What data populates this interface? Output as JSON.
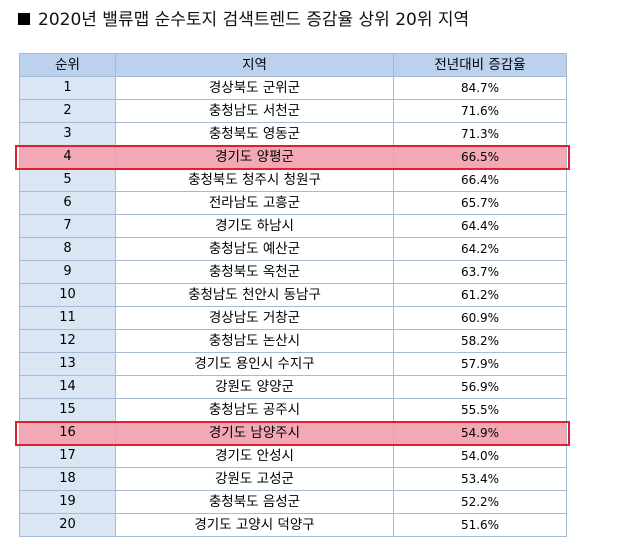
{
  "title": "2020년 밸류맵 순수토지 검색트렌드 증감율 상위 20위 지역",
  "colors": {
    "header_bg": "#bcd1ee",
    "rank_col_bg": "#dbe6f5",
    "highlight_fill": "#f2a9b5",
    "highlight_border": "#e0202f"
  },
  "table": {
    "headers": [
      "순위",
      "지역",
      "전년대비 증감율"
    ],
    "rows": [
      {
        "rank": "1",
        "region": "경상북도 군위군",
        "rate": "84.7%",
        "highlight": false
      },
      {
        "rank": "2",
        "region": "충청남도 서천군",
        "rate": "71.6%",
        "highlight": false
      },
      {
        "rank": "3",
        "region": "충청북도 영동군",
        "rate": "71.3%",
        "highlight": false
      },
      {
        "rank": "4",
        "region": "경기도 양평군",
        "rate": "66.5%",
        "highlight": true
      },
      {
        "rank": "5",
        "region": "충청북도 청주시 청원구",
        "rate": "66.4%",
        "highlight": false
      },
      {
        "rank": "6",
        "region": "전라남도 고흥군",
        "rate": "65.7%",
        "highlight": false
      },
      {
        "rank": "7",
        "region": "경기도 하남시",
        "rate": "64.4%",
        "highlight": false
      },
      {
        "rank": "8",
        "region": "충청남도 예산군",
        "rate": "64.2%",
        "highlight": false
      },
      {
        "rank": "9",
        "region": "충청북도 옥천군",
        "rate": "63.7%",
        "highlight": false
      },
      {
        "rank": "10",
        "region": "충청남도 천안시 동남구",
        "rate": "61.2%",
        "highlight": false
      },
      {
        "rank": "11",
        "region": "경상남도 거창군",
        "rate": "60.9%",
        "highlight": false
      },
      {
        "rank": "12",
        "region": "충청남도 논산시",
        "rate": "58.2%",
        "highlight": false
      },
      {
        "rank": "13",
        "region": "경기도 용인시 수지구",
        "rate": "57.9%",
        "highlight": false
      },
      {
        "rank": "14",
        "region": "강원도 양양군",
        "rate": "56.9%",
        "highlight": false
      },
      {
        "rank": "15",
        "region": "충청남도 공주시",
        "rate": "55.5%",
        "highlight": false
      },
      {
        "rank": "16",
        "region": "경기도 남양주시",
        "rate": "54.9%",
        "highlight": true
      },
      {
        "rank": "17",
        "region": "경기도 안성시",
        "rate": "54.0%",
        "highlight": false
      },
      {
        "rank": "18",
        "region": "강원도 고성군",
        "rate": "53.4%",
        "highlight": false
      },
      {
        "rank": "19",
        "region": "충청북도 음성군",
        "rate": "52.2%",
        "highlight": false
      },
      {
        "rank": "20",
        "region": "경기도 고양시 덕양구",
        "rate": "51.6%",
        "highlight": false
      }
    ]
  }
}
